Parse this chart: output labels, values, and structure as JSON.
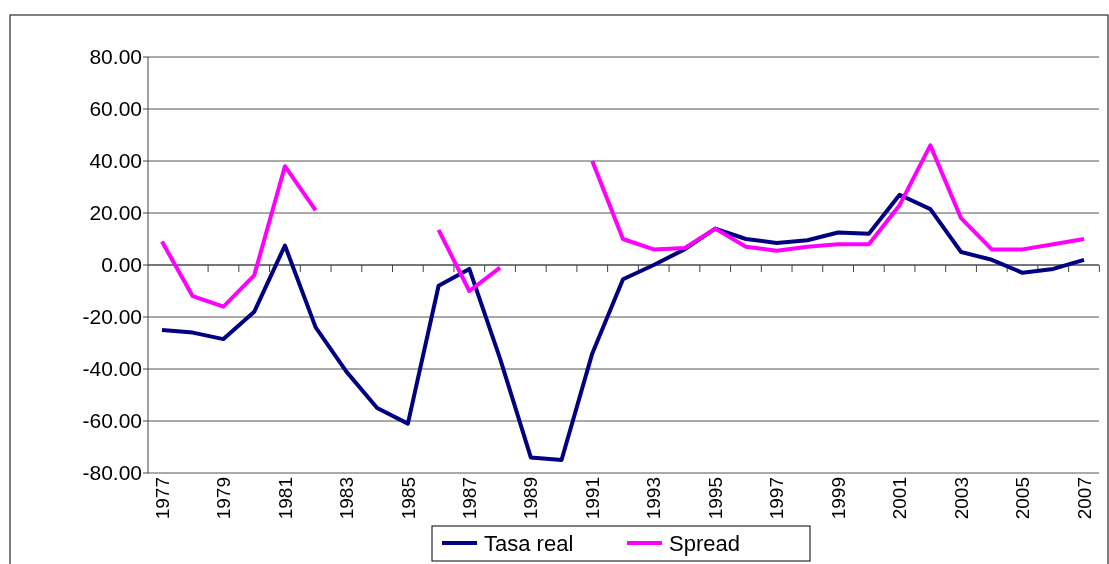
{
  "chart_data": {
    "type": "line",
    "categories": [
      "1977",
      null,
      "1979",
      null,
      "1981",
      null,
      "1983",
      null,
      "1985",
      null,
      "1987",
      null,
      "1989",
      null,
      "1991",
      null,
      "1993",
      null,
      "1995",
      null,
      "1997",
      null,
      "1999",
      null,
      "2001",
      null,
      "2003",
      null,
      "2005",
      null,
      "2007"
    ],
    "series": [
      {
        "name": "Tasa real",
        "color": "#000080",
        "values": [
          -25,
          -26,
          -28.5,
          -18,
          7.5,
          -24,
          -41,
          -55,
          -61,
          -8,
          -1.5,
          -36,
          -74,
          -75,
          -34,
          -5.5,
          0,
          6,
          14,
          10,
          8.5,
          9.5,
          12.5,
          12,
          27,
          21.5,
          5,
          2,
          -3,
          -1.5,
          2
        ]
      },
      {
        "name": "Spread",
        "color": "#ff00ff",
        "values": [
          9,
          -12,
          -16,
          -4,
          38,
          21,
          null,
          null,
          null,
          13.5,
          -10,
          -1,
          null,
          null,
          40,
          10,
          6,
          6.5,
          14,
          7,
          5.5,
          7,
          8,
          8,
          23,
          46,
          18,
          6,
          6,
          8,
          10
        ]
      }
    ],
    "ylim": [
      -80,
      80
    ],
    "yticks": [
      {
        "value": -80,
        "label": "-80.00"
      },
      {
        "value": -60,
        "label": "-60.00"
      },
      {
        "value": -40,
        "label": "-40.00"
      },
      {
        "value": -20,
        "label": "-20.00"
      },
      {
        "value": 0,
        "label": "0.00"
      },
      {
        "value": 20,
        "label": "20.00"
      },
      {
        "value": 40,
        "label": "40.00"
      },
      {
        "value": 60,
        "label": "60.00"
      },
      {
        "value": 80,
        "label": "80.00"
      }
    ],
    "grid": "y",
    "legend": "bottom",
    "marker": "none",
    "line_style": "solid"
  }
}
